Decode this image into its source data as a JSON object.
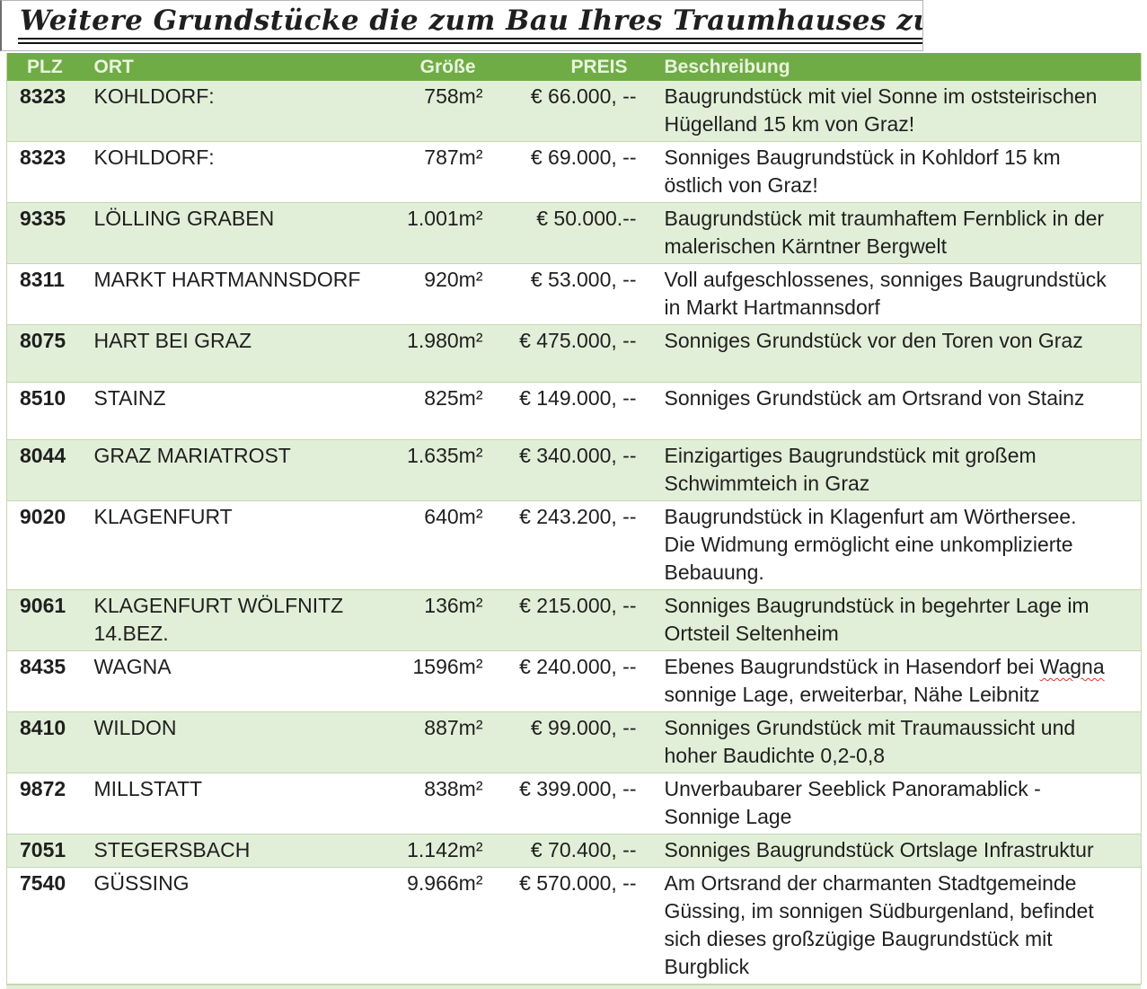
{
  "title": "Weitere Grundstücke die zum Bau Ihres Traumhauses zur Verfügung stehen",
  "colors": {
    "header_bg": "#6fac46",
    "header_text": "#eaf3df",
    "row_green": "#e2efd8",
    "row_border": "#c6d6ae",
    "spellcheck_squiggle": "#e0341f"
  },
  "table": {
    "columns": [
      "PLZ",
      "ORT",
      "Größe",
      "PREIS",
      "Beschreibung"
    ],
    "rows": [
      {
        "plz": "8323",
        "ort": "KOHLDORF:",
        "groesse": "758m²",
        "preis": "€ 66.000, --",
        "beschreibung": "Baugrundstück mit viel Sonne im oststeirischen Hügelland 15 km von Graz!",
        "shade": "green"
      },
      {
        "plz": "8323",
        "ort": "KOHLDORF:",
        "groesse": "787m²",
        "preis": "€ 69.000, --",
        "beschreibung": "Sonniges Baugrundstück in Kohldorf 15 km östlich von Graz!",
        "shade": "white"
      },
      {
        "plz": "9335",
        "ort": "LÖLLING GRABEN",
        "groesse": "1.001m²",
        "preis": "€ 50.000.--",
        "beschreibung": "Baugrundstück mit traumhaftem Fernblick in der malerischen Kärntner Bergwelt",
        "shade": "green"
      },
      {
        "plz": "8311",
        "ort": "MARKT HARTMANNSDORF",
        "groesse": "920m²",
        "preis": "€ 53.000, --",
        "beschreibung": "Voll aufgeschlossenes, sonniges Baugrundstück in Markt Hartmannsdorf",
        "shade": "white"
      },
      {
        "plz": "8075",
        "ort": "HART BEI GRAZ",
        "groesse": "1.980m²",
        "preis": "€ 475.000, --",
        "beschreibung": "Sonniges Grundstück vor den Toren von Graz",
        "shade": "green"
      },
      {
        "plz": "8510",
        "ort": "STAINZ",
        "groesse": "825m²",
        "preis": "€ 149.000, --",
        "beschreibung": "Sonniges Grundstück am Ortsrand von Stainz",
        "shade": "white"
      },
      {
        "plz": "8044",
        "ort": "GRAZ MARIATROST",
        "groesse": "1.635m²",
        "preis": "€ 340.000, --",
        "beschreibung": "Einzigartiges Baugrundstück mit großem Schwimmteich in Graz",
        "shade": "green"
      },
      {
        "plz": "9020",
        "ort": "KLAGENFURT",
        "groesse": "640m²",
        "preis": "€ 243.200, --",
        "beschreibung": "Baugrundstück in Klagenfurt am Wörthersee. Die Widmung ermöglicht eine unkomplizierte Bebauung.",
        "shade": "white"
      },
      {
        "plz": "9061",
        "ort": "KLAGENFURT WÖLFNITZ 14.BEZ.",
        "groesse": "136m²",
        "preis": "€ 215.000, --",
        "beschreibung": "Sonniges Baugrundstück in begehrter Lage im Ortsteil Seltenheim",
        "shade": "green"
      },
      {
        "plz": "8435",
        "ort": "WAGNA",
        "groesse": "1596m²",
        "preis": "€ 240.000, --",
        "beschreibung": "Ebenes Baugrundstück in Hasendorf bei Wagna sonnige Lage, erweiterbar, Nähe Leibnitz",
        "spellcheck_word": "Wagna",
        "shade": "white"
      },
      {
        "plz": "8410",
        "ort": "WILDON",
        "groesse": "887m²",
        "preis": "€ 99.000, --",
        "beschreibung": "Sonniges Grundstück mit Traumaussicht und hoher Baudichte 0,2-0,8",
        "shade": "green"
      },
      {
        "plz": "9872",
        "ort": "MILLSTATT",
        "groesse": "838m²",
        "preis": "€ 399.000, --",
        "beschreibung": "Unverbaubarer Seeblick Panoramablick - Sonnige Lage",
        "shade": "white"
      },
      {
        "plz": "7051",
        "ort": "STEGERSBACH",
        "groesse": "1.142m²",
        "preis": "€ 70.400, --",
        "beschreibung": "Sonniges Baugrundstück Ortslage Infrastruktur",
        "shade": "green",
        "compact": true
      },
      {
        "plz": "7540",
        "ort": "GÜSSING",
        "groesse": "9.966m²",
        "preis": "€ 570.000, --",
        "beschreibung": "Am Ortsrand der charmanten Stadtgemeinde Güssing, im sonnigen Südburgenland, befindet sich dieses großzügige Baugrundstück mit Burgblick",
        "shade": "white"
      }
    ]
  }
}
